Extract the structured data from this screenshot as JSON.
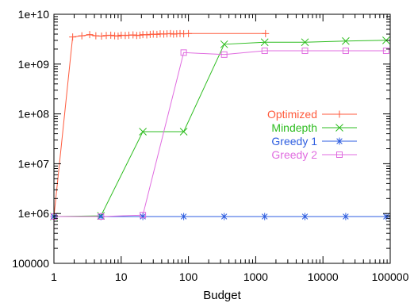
{
  "chart_data": {
    "type": "line",
    "title": "",
    "xlabel": "Budget",
    "ylabel": "",
    "x_scale": "log",
    "y_scale": "log",
    "xlim": [
      1,
      100000
    ],
    "ylim": [
      100000,
      10000000000
    ],
    "grid": false,
    "legend_position": "right-center",
    "x_ticks": [
      {
        "value": 1,
        "label": "1"
      },
      {
        "value": 10,
        "label": "10"
      },
      {
        "value": 100,
        "label": "100"
      },
      {
        "value": 1000,
        "label": "1000"
      },
      {
        "value": 10000,
        "label": "10000"
      },
      {
        "value": 100000,
        "label": "100000"
      }
    ],
    "y_ticks": [
      {
        "value": 100000,
        "label": "100000"
      },
      {
        "value": 1000000,
        "label": "1e+06"
      },
      {
        "value": 10000000,
        "label": "1e+07"
      },
      {
        "value": 100000000,
        "label": "1e+08"
      },
      {
        "value": 1000000000,
        "label": "1e+09"
      },
      {
        "value": 10000000000,
        "label": "1e+10"
      }
    ],
    "series": [
      {
        "name": "Optimized",
        "color": "#ff5a3c",
        "marker": "plus",
        "points": [
          [
            1,
            870000
          ],
          [
            1.9,
            3500000000
          ],
          [
            2.6,
            3700000000
          ],
          [
            3.4,
            3900000000
          ],
          [
            4.2,
            3700000000
          ],
          [
            5.1,
            3650000000
          ],
          [
            6,
            3750000000
          ],
          [
            7,
            3800000000
          ],
          [
            8,
            3700000000
          ],
          [
            9,
            3650000000
          ],
          [
            10,
            3800000000
          ],
          [
            11.5,
            3750000000
          ],
          [
            13,
            3800000000
          ],
          [
            15,
            3850000000
          ],
          [
            17,
            3750000000
          ],
          [
            19,
            3800000000
          ],
          [
            21,
            3900000000
          ],
          [
            24,
            3850000000
          ],
          [
            27,
            3950000000
          ],
          [
            30,
            4000000000
          ],
          [
            34,
            3950000000
          ],
          [
            38,
            4050000000
          ],
          [
            43,
            4000000000
          ],
          [
            48,
            4050000000
          ],
          [
            54,
            4100000000
          ],
          [
            60,
            4000000000
          ],
          [
            67,
            4050000000
          ],
          [
            75,
            4100000000
          ],
          [
            85,
            4050000000
          ],
          [
            100,
            4100000000
          ],
          [
            1400,
            4100000000
          ]
        ]
      },
      {
        "name": "Mindepth",
        "color": "#2ebd20",
        "marker": "x",
        "points": [
          [
            1,
            870000
          ],
          [
            5,
            900000
          ],
          [
            21,
            44000000
          ],
          [
            85,
            44000000
          ],
          [
            340,
            2500000000
          ],
          [
            1360,
            2750000000
          ],
          [
            5400,
            2750000000
          ],
          [
            21800,
            2900000000
          ],
          [
            87000,
            3000000000
          ]
        ]
      },
      {
        "name": "Greedy 1",
        "color": "#2e5ee0",
        "marker": "star",
        "points": [
          [
            1,
            870000
          ],
          [
            5,
            870000
          ],
          [
            21,
            870000
          ],
          [
            85,
            870000
          ],
          [
            340,
            870000
          ],
          [
            1360,
            870000
          ],
          [
            5400,
            870000
          ],
          [
            21800,
            870000
          ],
          [
            87000,
            870000
          ]
        ]
      },
      {
        "name": "Greedy 2",
        "color": "#e06ce0",
        "marker": "square",
        "points": [
          [
            1,
            870000
          ],
          [
            5,
            870000
          ],
          [
            21,
            930000
          ],
          [
            85,
            1700000000
          ],
          [
            340,
            1550000000
          ],
          [
            1360,
            1850000000
          ],
          [
            5400,
            1850000000
          ],
          [
            21800,
            1850000000
          ],
          [
            87000,
            1850000000
          ]
        ]
      }
    ]
  }
}
